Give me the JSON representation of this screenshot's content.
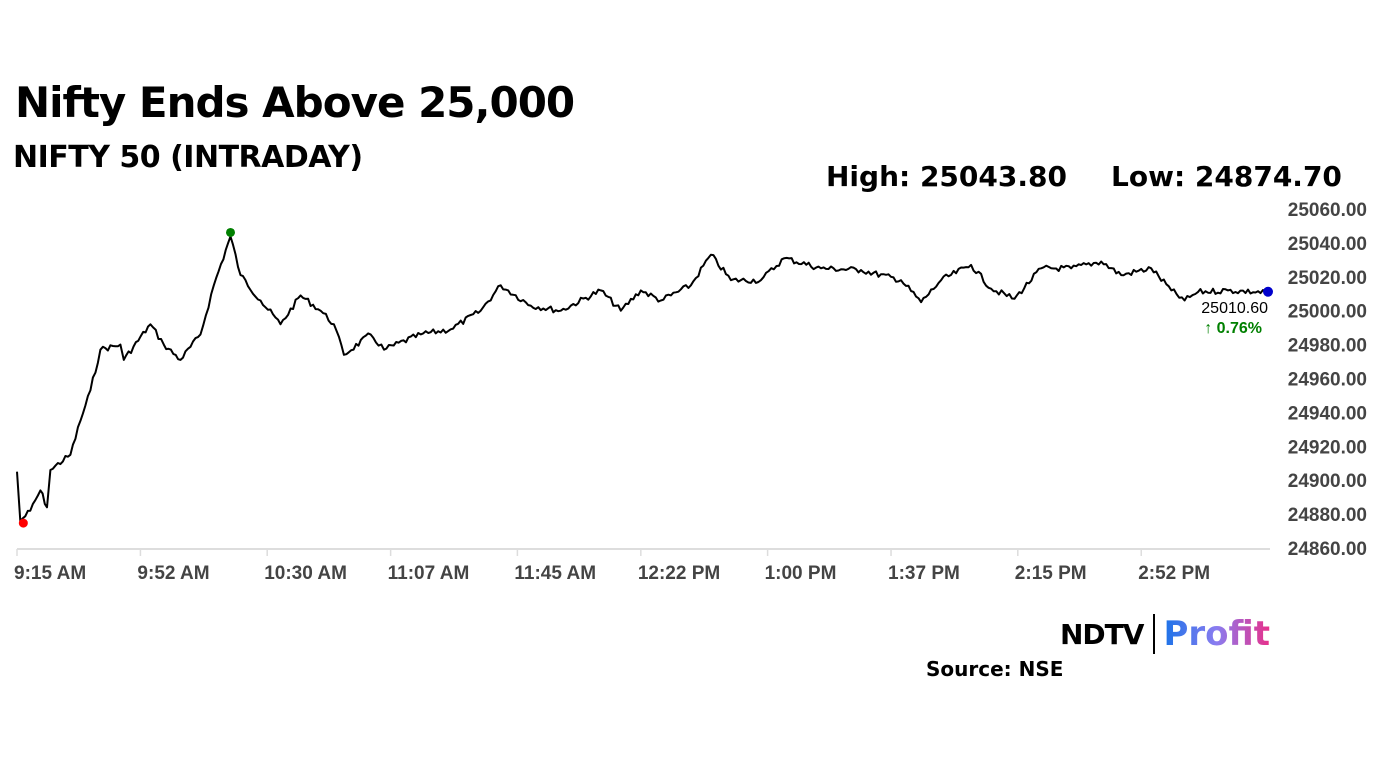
{
  "header": {
    "title": "Nifty Ends Above 25,000",
    "subtitle": "NIFTY 50 (INTRADAY)",
    "high": "High: 25043.80",
    "low": "Low: 24874.70"
  },
  "footer": {
    "brand_left": "NDTV",
    "brand_right": "Profit",
    "source": "Source: NSE"
  },
  "colors": {
    "line": "#000000",
    "low_marker": "#ff0000",
    "high_marker": "#008000",
    "last_marker": "#0000cc",
    "change": "#008000",
    "axis_text": "#444444"
  },
  "chart_data": {
    "type": "line",
    "title": "NIFTY 50 (INTRADAY)",
    "xlim": [
      "09:15",
      "15:30"
    ],
    "ylim": [
      24860,
      25060
    ],
    "y_ticks": [
      25060,
      25040,
      25020,
      25000,
      24980,
      24960,
      24940,
      24920,
      24900,
      24880,
      24860
    ],
    "y_tick_labels": [
      "25060.00",
      "25040.00",
      "25020.00",
      "25000.00",
      "24980.00",
      "24960.00",
      "24940.00",
      "24920.00",
      "24900.00",
      "24880.00",
      "24860.00"
    ],
    "x_ticks": [
      "09:15",
      "09:52",
      "10:30",
      "11:07",
      "11:45",
      "12:22",
      "13:00",
      "13:37",
      "14:15",
      "14:52"
    ],
    "x_tick_labels": [
      "9:15 AM",
      "9:52 AM",
      "10:30 AM",
      "11:07 AM",
      "11:45 AM",
      "12:22 PM",
      "1:00 PM",
      "1:37 PM",
      "2:15 PM",
      "2:52 PM"
    ],
    "grid": false,
    "points": [
      [
        "09:15",
        24905
      ],
      [
        "09:16",
        24876
      ],
      [
        "09:19",
        24882
      ],
      [
        "09:22",
        24894
      ],
      [
        "09:24",
        24884
      ],
      [
        "09:25",
        24906
      ],
      [
        "09:31",
        24915
      ],
      [
        "09:34",
        24935
      ],
      [
        "09:37",
        24953
      ],
      [
        "09:40",
        24977
      ],
      [
        "09:46",
        24980
      ],
      [
        "09:47",
        24971
      ],
      [
        "09:55",
        24992
      ],
      [
        "09:59",
        24980
      ],
      [
        "10:04",
        24971
      ],
      [
        "10:10",
        24986
      ],
      [
        "10:14",
        25015
      ],
      [
        "10:19",
        25043.8
      ],
      [
        "10:22",
        25021
      ],
      [
        "10:28",
        25006
      ],
      [
        "10:34",
        24992
      ],
      [
        "10:40",
        25009
      ],
      [
        "10:46",
        25000
      ],
      [
        "10:50",
        24992
      ],
      [
        "10:53",
        24974
      ],
      [
        "11:01",
        24986
      ],
      [
        "11:05",
        24977
      ],
      [
        "11:16",
        24986
      ],
      [
        "11:25",
        24989
      ],
      [
        "11:34",
        25000
      ],
      [
        "11:40",
        25015
      ],
      [
        "11:49",
        25003
      ],
      [
        "11:58",
        25000
      ],
      [
        "12:10",
        25012
      ],
      [
        "12:16",
        25000
      ],
      [
        "12:22",
        25012
      ],
      [
        "12:28",
        25006
      ],
      [
        "12:37",
        25015
      ],
      [
        "12:43",
        25033
      ],
      [
        "12:49",
        25018
      ],
      [
        "12:58",
        25018
      ],
      [
        "13:05",
        25031
      ],
      [
        "13:16",
        25025
      ],
      [
        "13:28",
        25024
      ],
      [
        "13:40",
        25018
      ],
      [
        "13:46",
        25005
      ],
      [
        "13:52",
        25018
      ],
      [
        "14:01",
        25027
      ],
      [
        "14:07",
        25013
      ],
      [
        "14:14",
        25007
      ],
      [
        "14:22",
        25025
      ],
      [
        "14:31",
        25025
      ],
      [
        "14:40",
        25029
      ],
      [
        "14:46",
        25021
      ],
      [
        "14:55",
        25025
      ],
      [
        "15:01",
        25012
      ],
      [
        "15:05",
        25006
      ],
      [
        "15:09",
        25011
      ],
      [
        "15:18",
        25012
      ],
      [
        "15:30",
        25010.6
      ]
    ],
    "low": {
      "time": "09:16",
      "value": 24874.7
    },
    "high": {
      "time": "10:19",
      "value": 25043.8
    },
    "last": {
      "time": "15:30",
      "value": 25010.6,
      "label": "25010.60",
      "change": "0.76%"
    }
  }
}
